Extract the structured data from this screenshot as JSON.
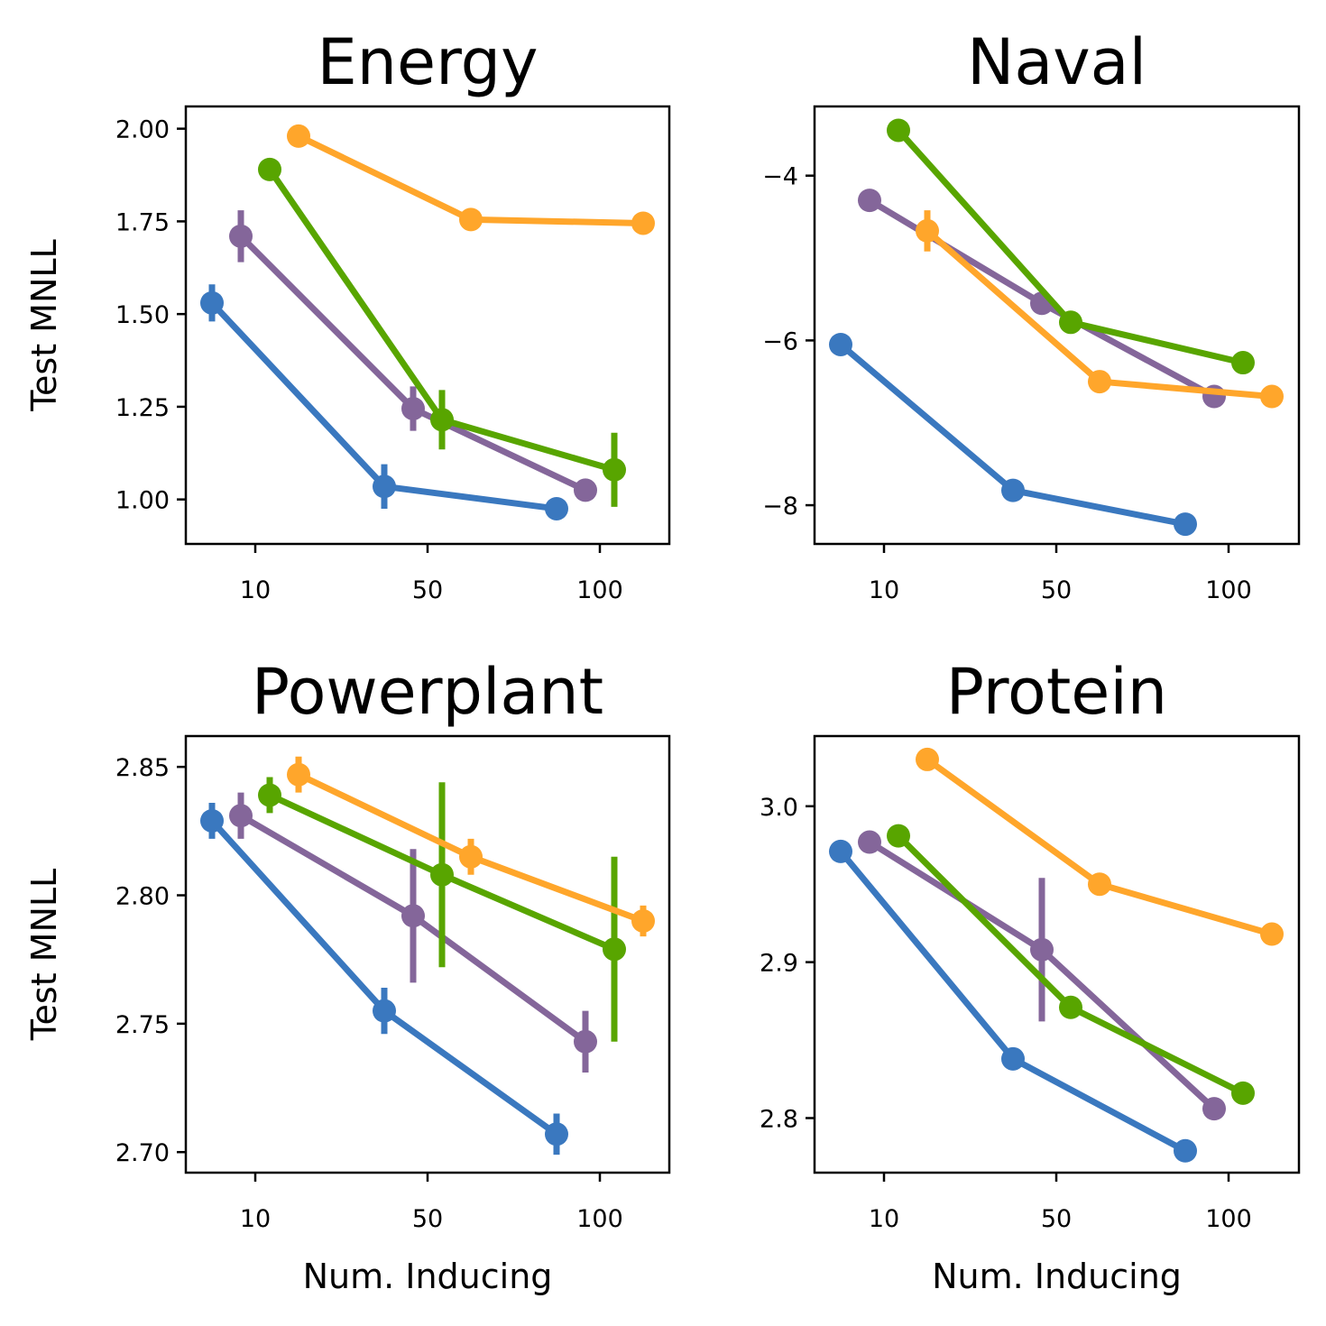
{
  "colors": {
    "series": [
      "#3a78bf",
      "#84669a",
      "#58a500",
      "#ffa62b"
    ],
    "errorbar": "same-as-series"
  },
  "chart_data": [
    {
      "type": "line",
      "title": "Energy",
      "ylabel": "Test MNLL",
      "xlabel": "",
      "x": [
        "10",
        "50",
        "100"
      ],
      "ylim": [
        0.88,
        2.06
      ],
      "yticks": [
        "1.00",
        "1.25",
        "1.50",
        "1.75",
        "2.00"
      ],
      "series": [
        {
          "values": [
            1.53,
            1.035,
            0.975
          ],
          "err": [
            0.05,
            0.06,
            0.03
          ]
        },
        {
          "values": [
            1.71,
            1.245,
            1.025
          ],
          "err": [
            0.07,
            0.06,
            0.03
          ]
        },
        {
          "values": [
            1.89,
            1.215,
            1.08
          ],
          "err": [
            0.02,
            0.08,
            0.1
          ]
        },
        {
          "values": [
            1.98,
            1.755,
            1.745
          ],
          "err": [
            0.01,
            0.01,
            0.01
          ]
        }
      ]
    },
    {
      "type": "line",
      "title": "Naval",
      "ylabel": "",
      "xlabel": "",
      "x": [
        "10",
        "50",
        "100"
      ],
      "ylim": [
        -8.47,
        -3.16
      ],
      "yticks": [
        "−8",
        "−6",
        "−4"
      ],
      "series": [
        {
          "values": [
            -6.05,
            -7.82,
            -8.23
          ],
          "err": [
            0.05,
            0.05,
            0.05
          ]
        },
        {
          "values": [
            -4.3,
            -5.55,
            -6.68
          ],
          "err": [
            0.05,
            0.05,
            0.05
          ]
        },
        {
          "values": [
            -3.45,
            -5.78,
            -6.27
          ],
          "err": [
            0.05,
            0.05,
            0.05
          ]
        },
        {
          "values": [
            -4.67,
            -6.5,
            -6.68
          ],
          "err": [
            0.25,
            0.05,
            0.05
          ]
        }
      ]
    },
    {
      "type": "line",
      "title": "Powerplant",
      "ylabel": "Test MNLL",
      "xlabel": "Num. Inducing",
      "x": [
        "10",
        "50",
        "100"
      ],
      "ylim": [
        2.692,
        2.862
      ],
      "yticks": [
        "2.70",
        "2.75",
        "2.80",
        "2.85"
      ],
      "series": [
        {
          "values": [
            2.829,
            2.755,
            2.707
          ],
          "err": [
            0.007,
            0.009,
            0.008
          ]
        },
        {
          "values": [
            2.831,
            2.792,
            2.743
          ],
          "err": [
            0.009,
            0.026,
            0.012
          ]
        },
        {
          "values": [
            2.839,
            2.808,
            2.779
          ],
          "err": [
            0.007,
            0.036,
            0.036
          ]
        },
        {
          "values": [
            2.847,
            2.815,
            2.79
          ],
          "err": [
            0.007,
            0.007,
            0.006
          ]
        }
      ]
    },
    {
      "type": "line",
      "title": "Protein",
      "ylabel": "",
      "xlabel": "Num. Inducing",
      "x": [
        "10",
        "50",
        "100"
      ],
      "ylim": [
        2.765,
        3.045
      ],
      "yticks": [
        "2.8",
        "2.9",
        "3.0"
      ],
      "series": [
        {
          "values": [
            2.971,
            2.838,
            2.779
          ],
          "err": [
            0.003,
            0.003,
            0.003
          ]
        },
        {
          "values": [
            2.977,
            2.908,
            2.806
          ],
          "err": [
            0.003,
            0.046,
            0.003
          ]
        },
        {
          "values": [
            2.981,
            2.871,
            2.816
          ],
          "err": [
            0.003,
            0.003,
            0.003
          ]
        },
        {
          "values": [
            3.03,
            2.95,
            2.918
          ],
          "err": [
            0.003,
            0.003,
            0.003
          ]
        }
      ]
    }
  ]
}
